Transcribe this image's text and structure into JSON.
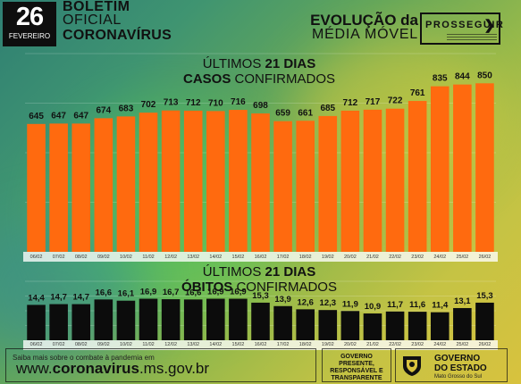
{
  "header": {
    "day": "26",
    "month": "FEVEREIRO",
    "title_line1": "BOLETIM",
    "title_line2": "OFICIAL",
    "title_line3": "CORONAVÍRUS",
    "evolution_line1": "EVOLUÇÃO da",
    "evolution_line2": "MÉDIA MÓVEL",
    "program_logo": "PROSSEGUIR"
  },
  "sections": {
    "cases_line1_a": "ÚLTIMOS ",
    "cases_line1_b": "21 DIAS",
    "cases_line2_a": "CASOS",
    "cases_line2_b": " CONFIRMADOS",
    "deaths_line1_a": "ÚLTIMOS ",
    "deaths_line1_b": "21 DIAS",
    "deaths_line2_a": "ÓBITOS",
    "deaths_line2_b": " CONFIRMADOS"
  },
  "chart_data": [
    {
      "type": "bar",
      "categories": [
        "06/02",
        "07/02",
        "08/02",
        "09/02",
        "10/02",
        "11/02",
        "12/02",
        "13/02",
        "14/02",
        "15/02",
        "16/02",
        "17/02",
        "18/02",
        "19/02",
        "20/02",
        "21/02",
        "22/02",
        "23/02",
        "24/02",
        "25/02",
        "26/02"
      ],
      "values": [
        645,
        647,
        647,
        674,
        683,
        702,
        713,
        712,
        710,
        716,
        698,
        659,
        661,
        685,
        712,
        717,
        722,
        761,
        835,
        844,
        850
      ],
      "value_labels": [
        "645",
        "647",
        "647",
        "674",
        "683",
        "702",
        "713",
        "712",
        "710",
        "716",
        "698",
        "659",
        "661",
        "685",
        "712",
        "717",
        "722",
        "761",
        "835",
        "844",
        "850"
      ],
      "ylim": [
        0,
        1000
      ],
      "color": "#ff6a0f",
      "grid": true
    },
    {
      "type": "bar",
      "categories": [
        "06/02",
        "07/02",
        "08/02",
        "09/02",
        "10/02",
        "11/02",
        "12/02",
        "13/02",
        "14/02",
        "15/02",
        "16/02",
        "17/02",
        "18/02",
        "19/02",
        "20/02",
        "21/02",
        "22/02",
        "23/02",
        "24/02",
        "25/02",
        "26/02"
      ],
      "values": [
        14.4,
        14.7,
        14.7,
        16.6,
        16.1,
        16.9,
        16.7,
        16.6,
        16.9,
        16.9,
        15.3,
        13.9,
        12.6,
        12.3,
        11.9,
        10.9,
        11.7,
        11.6,
        11.4,
        13.1,
        15.3
      ],
      "value_labels": [
        "14,4",
        "14,7",
        "14,7",
        "16,6",
        "16,1",
        "16,9",
        "16,7",
        "16,6",
        "16,9",
        "16,9",
        "15,3",
        "13,9",
        "12,6",
        "12,3",
        "11,9",
        "10,9",
        "11,7",
        "11,6",
        "11,4",
        "13,1",
        "15,3"
      ],
      "ylim": [
        0,
        24
      ],
      "color": "#0c0c0c",
      "grid": true
    }
  ],
  "footer": {
    "info_text": "Saiba mais sobre o combate à pandemia em",
    "url_a": "www.",
    "url_b": "coronavirus",
    "url_c": ".ms.gov.br",
    "gov_line1": "GOVERNO",
    "gov_line2": "PRESENTE,",
    "gov_line3": "RESPONSÁVEL E",
    "gov_line4": "TRANSPARENTE",
    "state_line1": "GOVERNO",
    "state_line2": "DO ESTADO",
    "state_line3": "Mato Grosso do Sul"
  }
}
